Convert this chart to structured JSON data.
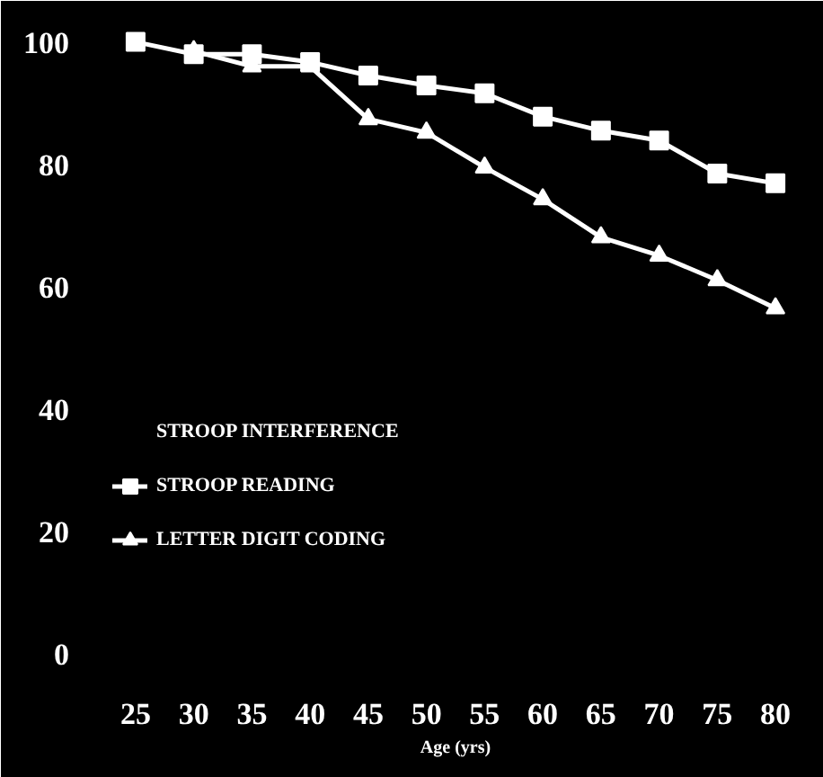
{
  "chart_data": {
    "type": "line",
    "xlabel": "Age (yrs)",
    "x": [
      25,
      30,
      35,
      40,
      45,
      50,
      55,
      60,
      65,
      70,
      75,
      80
    ],
    "series": [
      {
        "name": "STROOP INTERFERENCE",
        "values": [
          null,
          null,
          null,
          null,
          null,
          null,
          null,
          null,
          null,
          null,
          null,
          null
        ],
        "marker": "none"
      },
      {
        "name": "STROOP READING",
        "color": "#ffffff",
        "marker": "square",
        "values": [
          100,
          98,
          98,
          96.7,
          94.5,
          92.9,
          91.6,
          87.8,
          85.5,
          83.9,
          78.5,
          76.9
        ]
      },
      {
        "name": "LETTER DIGIT CODING",
        "color": "#ffffff",
        "marker": "triangle",
        "values": [
          null,
          98.5,
          96,
          96,
          87.4,
          85.2,
          79.5,
          74.3,
          68.1,
          65.1,
          61.1,
          56.5
        ]
      }
    ],
    "xlim": [
      23,
      82
    ],
    "ylim": [
      -2,
      102
    ],
    "xticks": [
      25,
      30,
      35,
      40,
      45,
      50,
      55,
      60,
      65,
      70,
      75,
      80
    ],
    "yticks": [
      0,
      20,
      40,
      60,
      80,
      100
    ],
    "grid": false,
    "legend": "left",
    "line_style": "solid"
  }
}
